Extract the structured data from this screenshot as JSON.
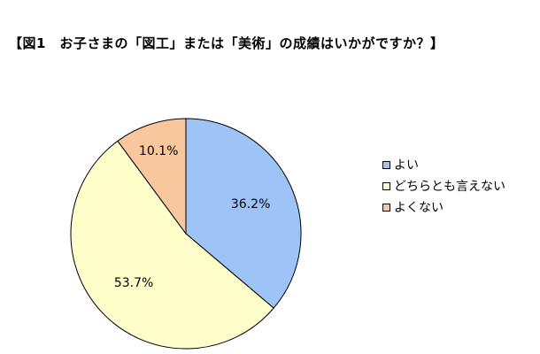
{
  "title": "【図1　お子さまの「図工」または「美術」の成績はいかがですか？】",
  "chart_data": {
    "type": "pie",
    "title": "【図1　お子さまの「図工」または「美術」の成績はいかがですか？】",
    "slices": [
      {
        "label": "よい",
        "value": 36.2,
        "display": "36.2%",
        "color": "#9dc3f7"
      },
      {
        "label": "どちらとも言えない",
        "value": 53.7,
        "display": "53.7%",
        "color": "#ffffcc"
      },
      {
        "label": "よくない",
        "value": 10.1,
        "display": "10.1%",
        "color": "#f9c79d"
      }
    ],
    "legend_position": "right",
    "start": "12 o'clock",
    "direction": "clockwise"
  }
}
